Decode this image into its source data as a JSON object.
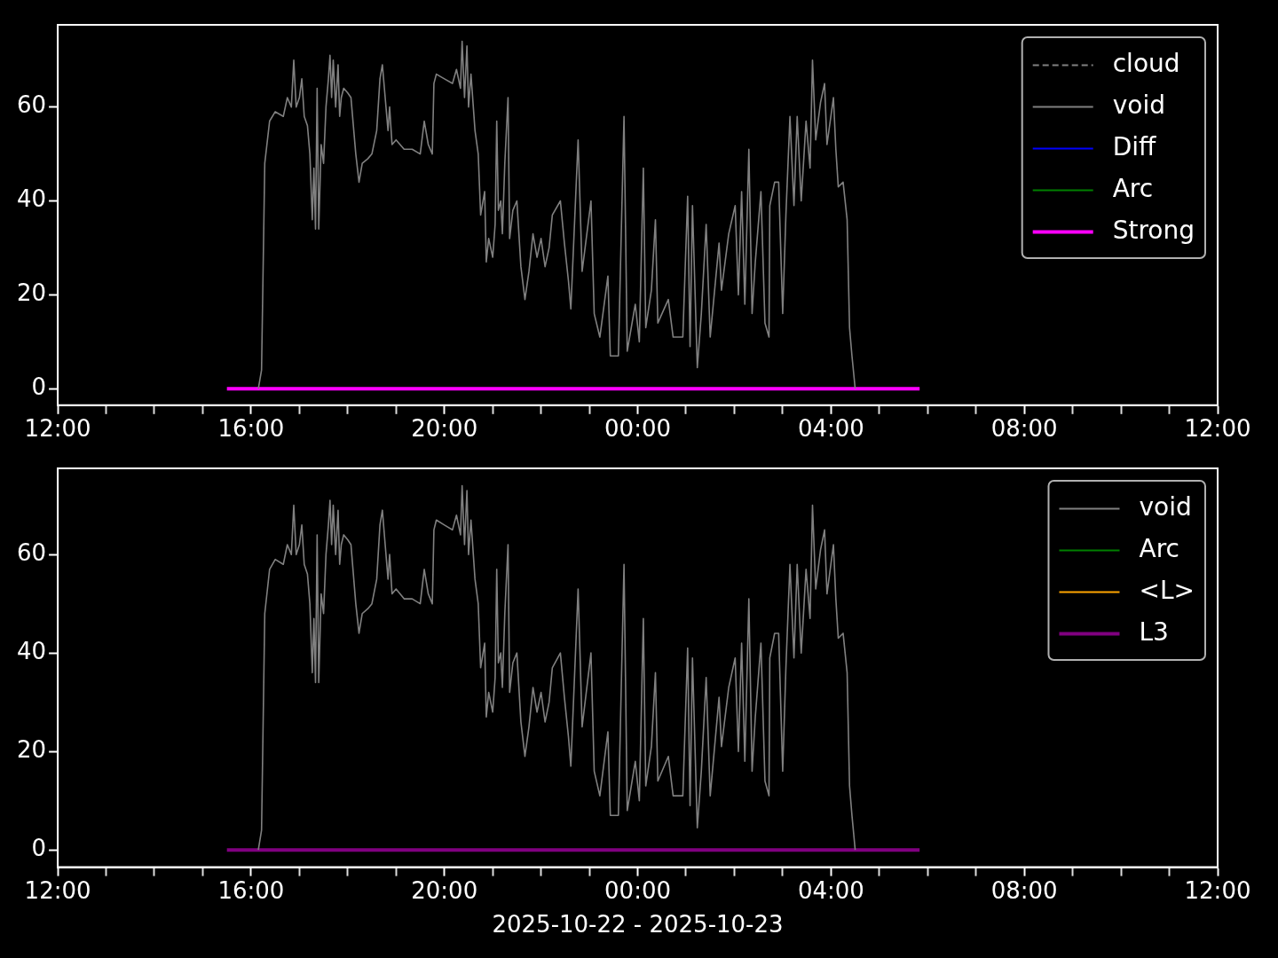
{
  "chart_data": [
    {
      "type": "line",
      "x": [
        "2025-10-22T16:09",
        "2025-10-22T16:13",
        "2025-10-22T16:17",
        "2025-10-22T16:23",
        "2025-10-22T16:30",
        "2025-10-22T16:40",
        "2025-10-22T16:45",
        "2025-10-22T16:50",
        "2025-10-22T16:53",
        "2025-10-22T16:56",
        "2025-10-22T17:00",
        "2025-10-22T17:03",
        "2025-10-22T17:06",
        "2025-10-22T17:10",
        "2025-10-22T17:13",
        "2025-10-22T17:16",
        "2025-10-22T17:18",
        "2025-10-22T17:20",
        "2025-10-22T17:22",
        "2025-10-22T17:24",
        "2025-10-22T17:27",
        "2025-10-22T17:30",
        "2025-10-22T17:33",
        "2025-10-22T17:36",
        "2025-10-22T17:38",
        "2025-10-22T17:40",
        "2025-10-22T17:42",
        "2025-10-22T17:45",
        "2025-10-22T17:48",
        "2025-10-22T17:50",
        "2025-10-22T17:52",
        "2025-10-22T17:55",
        "2025-10-22T18:00",
        "2025-10-22T18:04",
        "2025-10-22T18:10",
        "2025-10-22T18:14",
        "2025-10-22T18:18",
        "2025-10-22T18:25",
        "2025-10-22T18:30",
        "2025-10-22T18:36",
        "2025-10-22T18:40",
        "2025-10-22T18:43",
        "2025-10-22T18:46",
        "2025-10-22T18:50",
        "2025-10-22T18:52",
        "2025-10-22T18:55",
        "2025-10-22T19:00",
        "2025-10-22T19:10",
        "2025-10-22T19:20",
        "2025-10-22T19:30",
        "2025-10-22T19:35",
        "2025-10-22T19:40",
        "2025-10-22T19:45",
        "2025-10-22T19:47",
        "2025-10-22T19:50",
        "2025-10-22T20:00",
        "2025-10-22T20:10",
        "2025-10-22T20:15",
        "2025-10-22T20:20",
        "2025-10-22T20:22",
        "2025-10-22T20:25",
        "2025-10-22T20:28",
        "2025-10-22T20:30",
        "2025-10-22T20:33",
        "2025-10-22T20:38",
        "2025-10-22T20:42",
        "2025-10-22T20:45",
        "2025-10-22T20:50",
        "2025-10-22T20:52",
        "2025-10-22T20:55",
        "2025-10-22T21:00",
        "2025-10-22T21:03",
        "2025-10-22T21:05",
        "2025-10-22T21:07",
        "2025-10-22T21:10",
        "2025-10-22T21:12",
        "2025-10-22T21:15",
        "2025-10-22T21:19",
        "2025-10-22T21:21",
        "2025-10-22T21:25",
        "2025-10-22T21:30",
        "2025-10-22T21:35",
        "2025-10-22T21:40",
        "2025-10-22T21:45",
        "2025-10-22T21:50",
        "2025-10-22T21:55",
        "2025-10-22T22:00",
        "2025-10-22T22:05",
        "2025-10-22T22:10",
        "2025-10-22T22:14",
        "2025-10-22T22:24",
        "2025-10-22T22:29",
        "2025-10-22T22:34",
        "2025-10-22T22:37",
        "2025-10-22T22:46",
        "2025-10-22T22:48",
        "2025-10-22T22:51",
        "2025-10-22T23:02",
        "2025-10-22T23:06",
        "2025-10-22T23:13",
        "2025-10-22T23:23",
        "2025-10-22T23:26",
        "2025-10-22T23:36",
        "2025-10-22T23:43",
        "2025-10-22T23:47",
        "2025-10-22T23:57",
        "2025-10-23T00:02",
        "2025-10-23T00:07",
        "2025-10-23T00:10",
        "2025-10-23T00:17",
        "2025-10-23T00:22",
        "2025-10-23T00:25",
        "2025-10-23T00:38",
        "2025-10-23T00:44",
        "2025-10-23T00:56",
        "2025-10-23T01:02",
        "2025-10-23T01:05",
        "2025-10-23T01:08",
        "2025-10-23T01:14",
        "2025-10-23T01:19",
        "2025-10-23T01:25",
        "2025-10-23T01:30",
        "2025-10-23T01:41",
        "2025-10-23T01:44",
        "2025-10-23T01:53",
        "2025-10-23T02:01",
        "2025-10-23T02:05",
        "2025-10-23T02:09",
        "2025-10-23T02:13",
        "2025-10-23T02:18",
        "2025-10-23T02:22",
        "2025-10-23T02:26",
        "2025-10-23T02:33",
        "2025-10-23T02:38",
        "2025-10-23T02:43",
        "2025-10-23T02:44",
        "2025-10-23T02:50",
        "2025-10-23T02:55",
        "2025-10-23T03:00",
        "2025-10-23T03:04",
        "2025-10-23T03:09",
        "2025-10-23T03:14",
        "2025-10-23T03:18",
        "2025-10-23T03:23",
        "2025-10-23T03:29",
        "2025-10-23T03:34",
        "2025-10-23T03:37",
        "2025-10-23T03:41",
        "2025-10-23T03:47",
        "2025-10-23T03:52",
        "2025-10-23T03:55",
        "2025-10-23T04:03",
        "2025-10-23T04:06",
        "2025-10-23T04:09",
        "2025-10-23T04:15",
        "2025-10-23T04:20",
        "2025-10-23T04:23",
        "2025-10-23T04:26",
        "2025-10-23T04:30"
      ],
      "series": [
        {
          "name": "cloud",
          "color": "#808080",
          "line_style": "dashed",
          "values": [
            null,
            null,
            null,
            null,
            null,
            null,
            null,
            null,
            null,
            null,
            null,
            null,
            null,
            null,
            null,
            null,
            null,
            null,
            null,
            null,
            null,
            null,
            null,
            null,
            null,
            null,
            null,
            null,
            null,
            null,
            null,
            null,
            null,
            null,
            null,
            null,
            null,
            null,
            null,
            null,
            null,
            null,
            null,
            null,
            null,
            null,
            null,
            null,
            null,
            null,
            null,
            null,
            null,
            null,
            null,
            null,
            null,
            null,
            null,
            null,
            null,
            null,
            null,
            null,
            null,
            null,
            null,
            null,
            null,
            null,
            null,
            null,
            null,
            null,
            null,
            null,
            null,
            null,
            null,
            null,
            null,
            null,
            null,
            null,
            null,
            null,
            null,
            null,
            null,
            null,
            null,
            null,
            null,
            null,
            null,
            null,
            null,
            null,
            null,
            null,
            null,
            null,
            null,
            null,
            null,
            null,
            null,
            null,
            null,
            null,
            null,
            null,
            null,
            null,
            null,
            null,
            null,
            null,
            null,
            null,
            null,
            null,
            null,
            null,
            null,
            null,
            null,
            null,
            null,
            null,
            null,
            null,
            null,
            null,
            null,
            null,
            null,
            null,
            null,
            null,
            null,
            null,
            null,
            null,
            null,
            null,
            null,
            null,
            null,
            null,
            null,
            null,
            null,
            null,
            null,
            null,
            null,
            null,
            null
          ]
        },
        {
          "name": "void",
          "color": "#808080",
          "values": [
            0,
            4,
            48,
            57,
            59,
            58,
            62,
            60,
            70,
            60,
            62,
            66,
            58,
            56,
            50,
            36,
            47,
            34,
            64,
            34,
            52,
            48,
            60,
            66,
            71,
            62,
            70,
            60,
            69,
            58,
            62,
            64,
            63,
            62,
            50,
            44,
            48,
            49,
            50,
            55,
            66,
            69,
            63,
            55,
            60,
            52,
            53,
            51,
            51,
            50,
            57,
            52,
            50,
            65,
            67,
            66,
            65,
            68,
            64,
            74,
            62,
            73,
            60,
            67,
            55,
            50,
            37,
            42,
            27,
            32,
            28,
            35,
            57,
            38,
            40,
            33,
            48,
            62,
            32,
            38,
            40,
            26,
            19,
            25,
            33,
            28,
            32,
            26,
            30,
            37,
            40,
            31,
            23,
            17,
            53,
            42,
            25,
            40,
            16,
            11,
            24,
            7,
            7,
            58,
            8,
            18,
            10,
            47,
            13,
            21,
            36,
            14,
            19,
            11,
            11,
            41,
            9,
            39,
            4.5,
            16,
            35,
            11,
            31,
            21,
            33,
            39,
            20,
            42,
            18,
            51,
            16,
            27,
            42,
            14,
            11,
            39,
            44,
            44,
            16,
            37,
            58,
            39,
            58,
            40,
            57,
            47,
            70,
            53,
            61,
            65,
            52,
            62,
            51,
            43,
            44,
            36,
            13,
            7,
            0
          ]
        },
        {
          "name": "Diff",
          "color": "#0000ff",
          "values": [
            null,
            null,
            null,
            null,
            null,
            null,
            null,
            null,
            null,
            null,
            null,
            null,
            null,
            null,
            null,
            null,
            null,
            null,
            null,
            null,
            null,
            null,
            null,
            null,
            null,
            null,
            null,
            null,
            null,
            null,
            null,
            null,
            null,
            null,
            null,
            null,
            null,
            null,
            null,
            null,
            null,
            null,
            null,
            null,
            null,
            null,
            null,
            null,
            null,
            null,
            null,
            null,
            null,
            null,
            null,
            null,
            null,
            null,
            null,
            null,
            null,
            null,
            null,
            null,
            null,
            null,
            null,
            null,
            null,
            null,
            null,
            null,
            null,
            null,
            null,
            null,
            null,
            null,
            null,
            null,
            null,
            null,
            null,
            null,
            null,
            null,
            null,
            null,
            null,
            null,
            null,
            null,
            null,
            null,
            null,
            null,
            null,
            null,
            null,
            null,
            null,
            null,
            null,
            null,
            null,
            null,
            null,
            null,
            null,
            null,
            null,
            null,
            null,
            null,
            null,
            null,
            null,
            null,
            null,
            null,
            null,
            null,
            null,
            null,
            null,
            null,
            null,
            null,
            null,
            null,
            null,
            null,
            null,
            null,
            null,
            null,
            null,
            null,
            null,
            null,
            null,
            null,
            null,
            null,
            null,
            null,
            null,
            null,
            null,
            null,
            null,
            null,
            null,
            null,
            null,
            null,
            null,
            null,
            null
          ]
        },
        {
          "name": "Arc",
          "color": "#008000",
          "values": [
            null,
            null,
            null,
            null,
            null,
            null,
            null,
            null,
            null,
            null,
            null,
            null,
            null,
            null,
            null,
            null,
            null,
            null,
            null,
            null,
            null,
            null,
            null,
            null,
            null,
            null,
            null,
            null,
            null,
            null,
            null,
            null,
            null,
            null,
            null,
            null,
            null,
            null,
            null,
            null,
            null,
            null,
            null,
            null,
            null,
            null,
            null,
            null,
            null,
            null,
            null,
            null,
            null,
            null,
            null,
            null,
            null,
            null,
            null,
            null,
            null,
            null,
            null,
            null,
            null,
            null,
            null,
            null,
            null,
            null,
            null,
            null,
            null,
            null,
            null,
            null,
            null,
            null,
            null,
            null,
            null,
            null,
            null,
            null,
            null,
            null,
            null,
            null,
            null,
            null,
            null,
            null,
            null,
            null,
            null,
            null,
            null,
            null,
            null,
            null,
            null,
            null,
            null,
            null,
            null,
            null,
            null,
            null,
            null,
            null,
            null,
            null,
            null,
            null,
            null,
            null,
            null,
            null,
            null,
            null,
            null,
            null,
            null,
            null,
            null,
            null,
            null,
            null,
            null,
            null,
            null,
            null,
            null,
            null,
            null,
            null,
            null,
            null,
            null,
            null,
            null,
            null,
            null,
            null,
            null,
            null,
            null,
            null,
            null,
            null,
            null,
            null,
            null,
            null,
            null,
            null,
            null,
            null,
            null
          ]
        },
        {
          "name": "Strong",
          "color": "#ff00ff",
          "x": [
            "2025-10-22T15:30",
            "2025-10-23T05:50"
          ],
          "values": [
            0,
            0
          ]
        }
      ],
      "xlim": [
        "2025-10-22T12:00",
        "2025-10-23T12:00"
      ],
      "xticks": [
        {
          "value": "2025-10-22T12:00",
          "label": "12:00"
        },
        {
          "value": "2025-10-22T13:00",
          "label": null
        },
        {
          "value": "2025-10-22T14:00",
          "label": null
        },
        {
          "value": "2025-10-22T15:00",
          "label": null
        },
        {
          "value": "2025-10-22T16:00",
          "label": "16:00"
        },
        {
          "value": "2025-10-22T17:00",
          "label": null
        },
        {
          "value": "2025-10-22T18:00",
          "label": null
        },
        {
          "value": "2025-10-22T19:00",
          "label": null
        },
        {
          "value": "2025-10-22T20:00",
          "label": "20:00"
        },
        {
          "value": "2025-10-22T21:00",
          "label": null
        },
        {
          "value": "2025-10-22T22:00",
          "label": null
        },
        {
          "value": "2025-10-22T23:00",
          "label": null
        },
        {
          "value": "2025-10-23T00:00",
          "label": "00:00"
        },
        {
          "value": "2025-10-23T01:00",
          "label": null
        },
        {
          "value": "2025-10-23T02:00",
          "label": null
        },
        {
          "value": "2025-10-23T03:00",
          "label": null
        },
        {
          "value": "2025-10-23T04:00",
          "label": "04:00"
        },
        {
          "value": "2025-10-23T05:00",
          "label": null
        },
        {
          "value": "2025-10-23T06:00",
          "label": null
        },
        {
          "value": "2025-10-23T07:00",
          "label": null
        },
        {
          "value": "2025-10-23T08:00",
          "label": "08:00"
        },
        {
          "value": "2025-10-23T09:00",
          "label": null
        },
        {
          "value": "2025-10-23T10:00",
          "label": null
        },
        {
          "value": "2025-10-23T11:00",
          "label": null
        },
        {
          "value": "2025-10-23T12:00",
          "label": "12:00"
        }
      ],
      "ylim": [
        -3.5,
        77.5
      ],
      "yticks": [
        0,
        20,
        40,
        60
      ],
      "grid": false,
      "legend": "top right"
    },
    {
      "type": "line",
      "xlabel": "2025-10-22 - 2025-10-23",
      "x": [
        "2025-10-22T16:09",
        "2025-10-22T16:13",
        "2025-10-22T16:17",
        "2025-10-22T16:23",
        "2025-10-22T16:30",
        "2025-10-22T16:40",
        "2025-10-22T16:45",
        "2025-10-22T16:50",
        "2025-10-22T16:53",
        "2025-10-22T16:56",
        "2025-10-22T17:00",
        "2025-10-22T17:03",
        "2025-10-22T17:06",
        "2025-10-22T17:10",
        "2025-10-22T17:13",
        "2025-10-22T17:16",
        "2025-10-22T17:18",
        "2025-10-22T17:20",
        "2025-10-22T17:22",
        "2025-10-22T17:24",
        "2025-10-22T17:27",
        "2025-10-22T17:30",
        "2025-10-22T17:33",
        "2025-10-22T17:36",
        "2025-10-22T17:38",
        "2025-10-22T17:40",
        "2025-10-22T17:42",
        "2025-10-22T17:45",
        "2025-10-22T17:48",
        "2025-10-22T17:50",
        "2025-10-22T17:52",
        "2025-10-22T17:55",
        "2025-10-22T18:00",
        "2025-10-22T18:04",
        "2025-10-22T18:10",
        "2025-10-22T18:14",
        "2025-10-22T18:18",
        "2025-10-22T18:25",
        "2025-10-22T18:30",
        "2025-10-22T18:36",
        "2025-10-22T18:40",
        "2025-10-22T18:43",
        "2025-10-22T18:46",
        "2025-10-22T18:50",
        "2025-10-22T18:52",
        "2025-10-22T18:55",
        "2025-10-22T19:00",
        "2025-10-22T19:10",
        "2025-10-22T19:20",
        "2025-10-22T19:30",
        "2025-10-22T19:35",
        "2025-10-22T19:40",
        "2025-10-22T19:45",
        "2025-10-22T19:47",
        "2025-10-22T19:50",
        "2025-10-22T20:00",
        "2025-10-22T20:10",
        "2025-10-22T20:15",
        "2025-10-22T20:20",
        "2025-10-22T20:22",
        "2025-10-22T20:25",
        "2025-10-22T20:28",
        "2025-10-22T20:30",
        "2025-10-22T20:33",
        "2025-10-22T20:38",
        "2025-10-22T20:42",
        "2025-10-22T20:45",
        "2025-10-22T20:50",
        "2025-10-22T20:52",
        "2025-10-22T20:55",
        "2025-10-22T21:00",
        "2025-10-22T21:03",
        "2025-10-22T21:05",
        "2025-10-22T21:07",
        "2025-10-22T21:10",
        "2025-10-22T21:12",
        "2025-10-22T21:15",
        "2025-10-22T21:19",
        "2025-10-22T21:21",
        "2025-10-22T21:25",
        "2025-10-22T21:30",
        "2025-10-22T21:35",
        "2025-10-22T21:40",
        "2025-10-22T21:45",
        "2025-10-22T21:50",
        "2025-10-22T21:55",
        "2025-10-22T22:00",
        "2025-10-22T22:05",
        "2025-10-22T22:10",
        "2025-10-22T22:14",
        "2025-10-22T22:24",
        "2025-10-22T22:29",
        "2025-10-22T22:34",
        "2025-10-22T22:37",
        "2025-10-22T22:46",
        "2025-10-22T22:48",
        "2025-10-22T22:51",
        "2025-10-22T23:02",
        "2025-10-22T23:06",
        "2025-10-22T23:13",
        "2025-10-22T23:23",
        "2025-10-22T23:26",
        "2025-10-22T23:36",
        "2025-10-22T23:43",
        "2025-10-22T23:47",
        "2025-10-22T23:57",
        "2025-10-23T00:02",
        "2025-10-23T00:07",
        "2025-10-23T00:10",
        "2025-10-23T00:17",
        "2025-10-23T00:22",
        "2025-10-23T00:25",
        "2025-10-23T00:38",
        "2025-10-23T00:44",
        "2025-10-23T00:56",
        "2025-10-23T01:02",
        "2025-10-23T01:05",
        "2025-10-23T01:08",
        "2025-10-23T01:14",
        "2025-10-23T01:19",
        "2025-10-23T01:25",
        "2025-10-23T01:30",
        "2025-10-23T01:41",
        "2025-10-23T01:44",
        "2025-10-23T01:53",
        "2025-10-23T02:01",
        "2025-10-23T02:05",
        "2025-10-23T02:09",
        "2025-10-23T02:13",
        "2025-10-23T02:18",
        "2025-10-23T02:22",
        "2025-10-23T02:26",
        "2025-10-23T02:33",
        "2025-10-23T02:38",
        "2025-10-23T02:43",
        "2025-10-23T02:44",
        "2025-10-23T02:50",
        "2025-10-23T02:55",
        "2025-10-23T03:00",
        "2025-10-23T03:04",
        "2025-10-23T03:09",
        "2025-10-23T03:14",
        "2025-10-23T03:18",
        "2025-10-23T03:23",
        "2025-10-23T03:29",
        "2025-10-23T03:34",
        "2025-10-23T03:37",
        "2025-10-23T03:41",
        "2025-10-23T03:47",
        "2025-10-23T03:52",
        "2025-10-23T03:55",
        "2025-10-23T04:03",
        "2025-10-23T04:06",
        "2025-10-23T04:09",
        "2025-10-23T04:15",
        "2025-10-23T04:20",
        "2025-10-23T04:23",
        "2025-10-23T04:26",
        "2025-10-23T04:30"
      ],
      "series": [
        {
          "name": "void",
          "color": "#808080",
          "values": [
            0,
            4,
            48,
            57,
            59,
            58,
            62,
            60,
            70,
            60,
            62,
            66,
            58,
            56,
            50,
            36,
            47,
            34,
            64,
            34,
            52,
            48,
            60,
            66,
            71,
            62,
            70,
            60,
            69,
            58,
            62,
            64,
            63,
            62,
            50,
            44,
            48,
            49,
            50,
            55,
            66,
            69,
            63,
            55,
            60,
            52,
            53,
            51,
            51,
            50,
            57,
            52,
            50,
            65,
            67,
            66,
            65,
            68,
            64,
            74,
            62,
            73,
            60,
            67,
            55,
            50,
            37,
            42,
            27,
            32,
            28,
            35,
            57,
            38,
            40,
            33,
            48,
            62,
            32,
            38,
            40,
            26,
            19,
            25,
            33,
            28,
            32,
            26,
            30,
            37,
            40,
            31,
            23,
            17,
            53,
            42,
            25,
            40,
            16,
            11,
            24,
            7,
            7,
            58,
            8,
            18,
            10,
            47,
            13,
            21,
            36,
            14,
            19,
            11,
            11,
            41,
            9,
            39,
            4.5,
            16,
            35,
            11,
            31,
            21,
            33,
            39,
            20,
            42,
            18,
            51,
            16,
            27,
            42,
            14,
            11,
            39,
            44,
            44,
            16,
            37,
            58,
            39,
            58,
            40,
            57,
            47,
            70,
            53,
            61,
            65,
            52,
            62,
            51,
            43,
            44,
            36,
            13,
            7,
            0
          ]
        },
        {
          "name": "Arc",
          "color": "#008000",
          "values": [
            null,
            null,
            null,
            null,
            null,
            null,
            null,
            null,
            null,
            null,
            null,
            null,
            null,
            null,
            null,
            null,
            null,
            null,
            null,
            null,
            null,
            null,
            null,
            null,
            null,
            null,
            null,
            null,
            null,
            null,
            null,
            null,
            null,
            null,
            null,
            null,
            null,
            null,
            null,
            null,
            null,
            null,
            null,
            null,
            null,
            null,
            null,
            null,
            null,
            null,
            null,
            null,
            null,
            null,
            null,
            null,
            null,
            null,
            null,
            null,
            null,
            null,
            null,
            null,
            null,
            null,
            null,
            null,
            null,
            null,
            null,
            null,
            null,
            null,
            null,
            null,
            null,
            null,
            null,
            null,
            null,
            null,
            null,
            null,
            null,
            null,
            null,
            null,
            null,
            null,
            null,
            null,
            null,
            null,
            null,
            null,
            null,
            null,
            null,
            null,
            null,
            null,
            null,
            null,
            null,
            null,
            null,
            null,
            null,
            null,
            null,
            null,
            null,
            null,
            null,
            null,
            null,
            null,
            null,
            null,
            null,
            null,
            null,
            null,
            null,
            null,
            null,
            null,
            null,
            null,
            null,
            null,
            null,
            null,
            null,
            null,
            null,
            null,
            null,
            null,
            null,
            null,
            null,
            null,
            null,
            null,
            null,
            null,
            null,
            null,
            null,
            null,
            null,
            null,
            null,
            null,
            null,
            null,
            null
          ]
        },
        {
          "name": "<L>",
          "color": "#ffa500",
          "values": [
            null,
            null,
            null,
            null,
            null,
            null,
            null,
            null,
            null,
            null,
            null,
            null,
            null,
            null,
            null,
            null,
            null,
            null,
            null,
            null,
            null,
            null,
            null,
            null,
            null,
            null,
            null,
            null,
            null,
            null,
            null,
            null,
            null,
            null,
            null,
            null,
            null,
            null,
            null,
            null,
            null,
            null,
            null,
            null,
            null,
            null,
            null,
            null,
            null,
            null,
            null,
            null,
            null,
            null,
            null,
            null,
            null,
            null,
            null,
            null,
            null,
            null,
            null,
            null,
            null,
            null,
            null,
            null,
            null,
            null,
            null,
            null,
            null,
            null,
            null,
            null,
            null,
            null,
            null,
            null,
            null,
            null,
            null,
            null,
            null,
            null,
            null,
            null,
            null,
            null,
            null,
            null,
            null,
            null,
            null,
            null,
            null,
            null,
            null,
            null,
            null,
            null,
            null,
            null,
            null,
            null,
            null,
            null,
            null,
            null,
            null,
            null,
            null,
            null,
            null,
            null,
            null,
            null,
            null,
            null,
            null,
            null,
            null,
            null,
            null,
            null,
            null,
            null,
            null,
            null,
            null,
            null,
            null,
            null,
            null,
            null,
            null,
            null,
            null,
            null,
            null,
            null,
            null,
            null,
            null,
            null,
            null,
            null,
            null,
            null,
            null,
            null,
            null,
            null,
            null,
            null,
            null,
            null,
            null
          ]
        },
        {
          "name": "L3",
          "color": "#800080",
          "x": [
            "2025-10-22T15:30",
            "2025-10-23T05:50"
          ],
          "values": [
            0,
            0
          ]
        }
      ],
      "xlim": [
        "2025-10-22T12:00",
        "2025-10-23T12:00"
      ],
      "xticks": [
        {
          "value": "2025-10-22T12:00",
          "label": "12:00"
        },
        {
          "value": "2025-10-22T13:00",
          "label": null
        },
        {
          "value": "2025-10-22T14:00",
          "label": null
        },
        {
          "value": "2025-10-22T15:00",
          "label": null
        },
        {
          "value": "2025-10-22T16:00",
          "label": "16:00"
        },
        {
          "value": "2025-10-22T17:00",
          "label": null
        },
        {
          "value": "2025-10-22T18:00",
          "label": null
        },
        {
          "value": "2025-10-22T19:00",
          "label": null
        },
        {
          "value": "2025-10-22T20:00",
          "label": "20:00"
        },
        {
          "value": "2025-10-22T21:00",
          "label": null
        },
        {
          "value": "2025-10-22T22:00",
          "label": null
        },
        {
          "value": "2025-10-22T23:00",
          "label": null
        },
        {
          "value": "2025-10-23T00:00",
          "label": "00:00"
        },
        {
          "value": "2025-10-23T01:00",
          "label": null
        },
        {
          "value": "2025-10-23T02:00",
          "label": null
        },
        {
          "value": "2025-10-23T03:00",
          "label": null
        },
        {
          "value": "2025-10-23T04:00",
          "label": "04:00"
        },
        {
          "value": "2025-10-23T05:00",
          "label": null
        },
        {
          "value": "2025-10-23T06:00",
          "label": null
        },
        {
          "value": "2025-10-23T07:00",
          "label": null
        },
        {
          "value": "2025-10-23T08:00",
          "label": "08:00"
        },
        {
          "value": "2025-10-23T09:00",
          "label": null
        },
        {
          "value": "2025-10-23T10:00",
          "label": null
        },
        {
          "value": "2025-10-23T11:00",
          "label": null
        },
        {
          "value": "2025-10-23T12:00",
          "label": "12:00"
        }
      ],
      "ylim": [
        -3.5,
        77.5
      ],
      "yticks": [
        0,
        20,
        40,
        60
      ],
      "grid": false,
      "legend": "top right"
    }
  ]
}
